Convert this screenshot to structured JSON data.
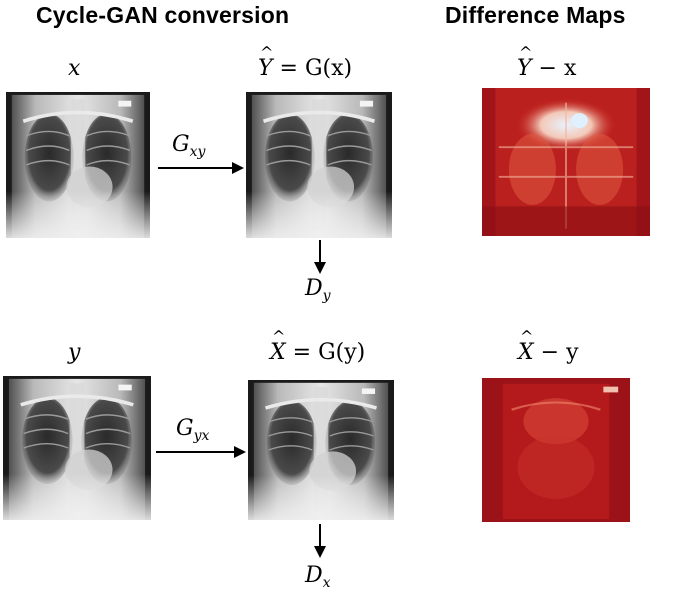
{
  "headings": {
    "left": "Cycle-GAN conversion",
    "right": "Difference Maps"
  },
  "row1": {
    "input_label": "x",
    "output_label_var": "Y",
    "output_label_rest": " = G(x)",
    "generator_base": "G",
    "generator_sub": "xy",
    "discriminator_base": "D",
    "discriminator_sub": "y",
    "diff_label_var": "Y",
    "diff_label_rest": " − x"
  },
  "row2": {
    "input_label": "y",
    "output_label_var": "X",
    "output_label_rest": " = G(y)",
    "generator_base": "G",
    "generator_sub": "yx",
    "discriminator_base": "D",
    "discriminator_sub": "x",
    "diff_label_var": "X",
    "diff_label_rest": " − y"
  },
  "colors": {
    "diff_map_dark": "#8b0f14",
    "diff_map_mid": "#c8261e",
    "diff_map_bright": "#f3d6c8"
  },
  "images": {
    "input_x": "chest-xray",
    "output_y_hat": "chest-xray",
    "input_y": "chest-xray",
    "output_x_hat": "chest-xray",
    "diff_map_1": "difference-heatmap",
    "diff_map_2": "difference-heatmap"
  }
}
